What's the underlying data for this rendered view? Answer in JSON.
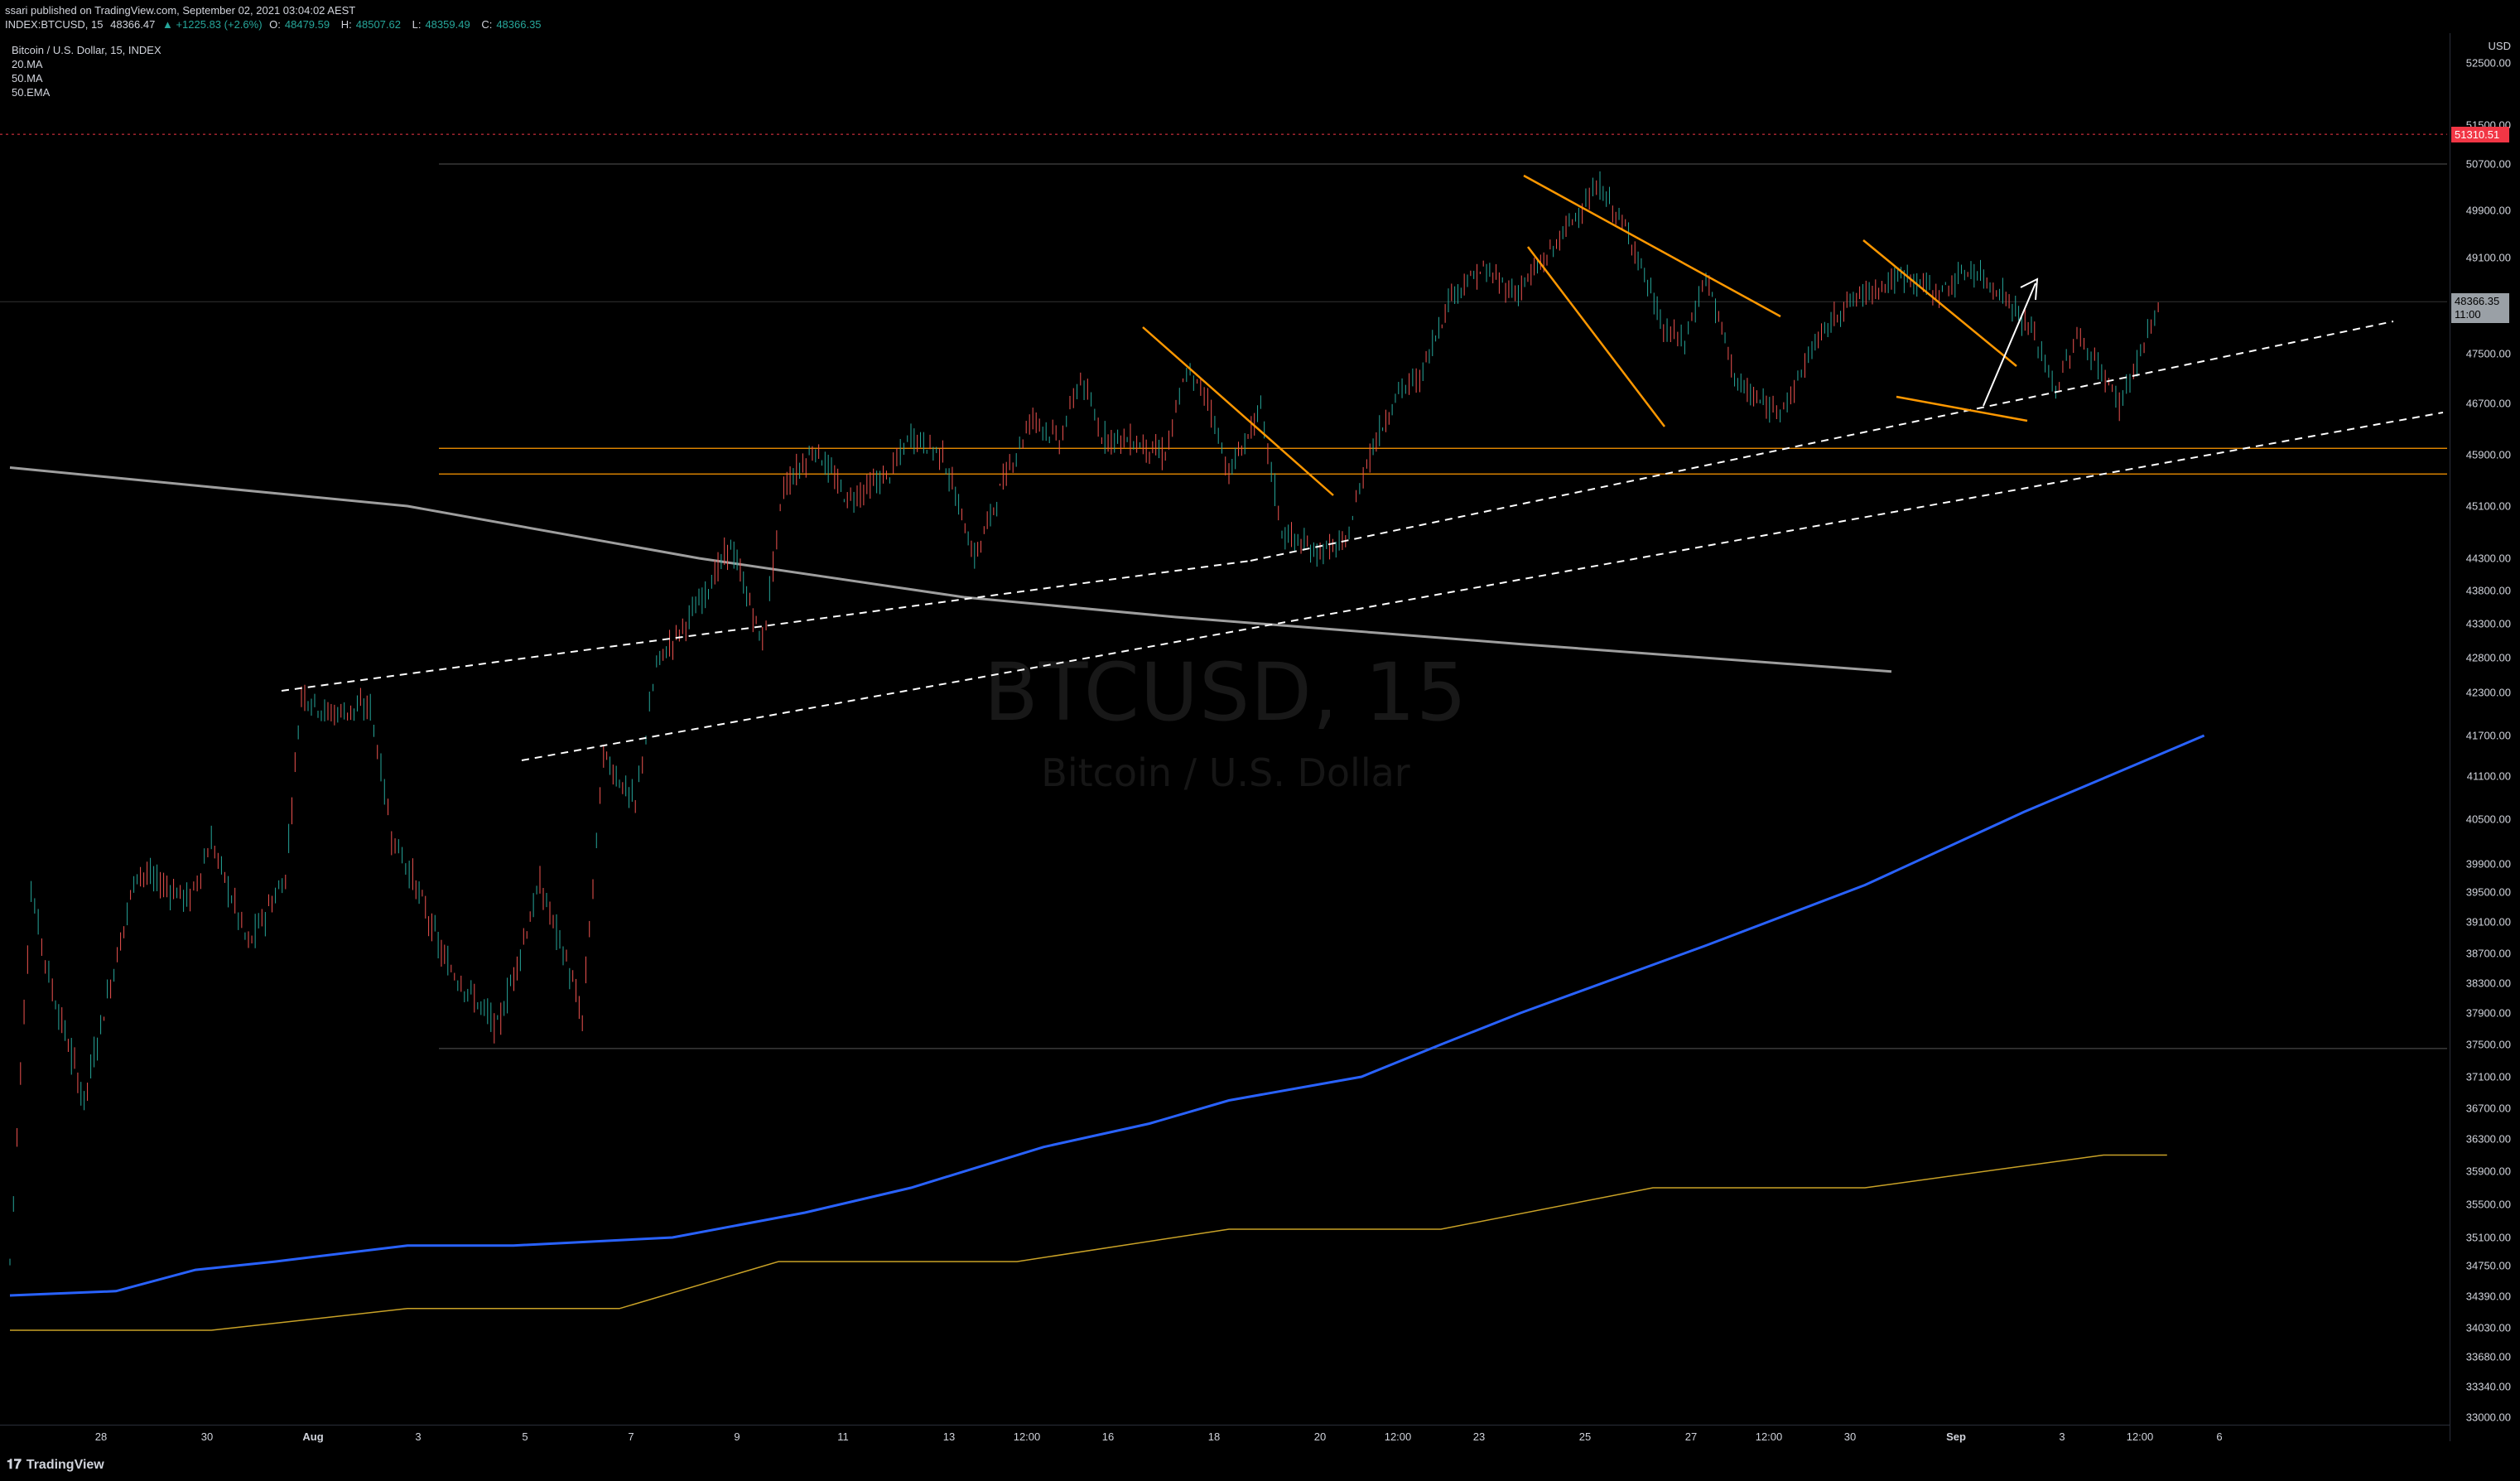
{
  "header": {
    "published": "ssari published on TradingView.com, September 02, 2021 03:04:02 AEST",
    "symbol_line": "INDEX:BTCUSD, 15",
    "last": "48366.47",
    "change": "▲ +1225.83 (+2.6%)",
    "o_label": "O:",
    "o": "48479.59",
    "h_label": "H:",
    "h": "48507.62",
    "l_label": "L:",
    "l": "48359.49",
    "c_label": "C:",
    "c": "48366.35"
  },
  "legend": {
    "title": "Bitcoin / U.S. Dollar, 15, INDEX",
    "ind1": "20.MA",
    "ind2": "50.MA",
    "ind3": "50.EMA"
  },
  "watermark": {
    "symbol": "BTCUSD, 15",
    "name": "Bitcoin / U.S. Dollar"
  },
  "axis": {
    "currency": "USD",
    "red_tag": "51310.51",
    "last_tag": "48366.35",
    "last_time": "11:00"
  },
  "footer": {
    "brand": "TradingView"
  },
  "colors": {
    "up": "#26a69a",
    "down": "#ef5350",
    "orange": "#ff9800",
    "blue": "#2962ff",
    "ema": "#9e9e9e",
    "ma50": "#c9a227"
  },
  "chart_data": {
    "type": "line",
    "y_ticks": [
      "52500.00",
      "51500.00",
      "50700.00",
      "49900.00",
      "49100.00",
      "47500.00",
      "46700.00",
      "45900.00",
      "45100.00",
      "44300.00",
      "43800.00",
      "43300.00",
      "42800.00",
      "42300.00",
      "41700.00",
      "41100.00",
      "40500.00",
      "39900.00",
      "39500.00",
      "39100.00",
      "38700.00",
      "38300.00",
      "37900.00",
      "37500.00",
      "37100.00",
      "36700.00",
      "36300.00",
      "35900.00",
      "35500.00",
      "35100.00",
      "34750.00",
      "34390.00",
      "34030.00",
      "33680.00",
      "33340.00",
      "33000.00"
    ],
    "x_ticks": [
      "28",
      "30",
      "Aug",
      "3",
      "5",
      "7",
      "9",
      "11",
      "13",
      "12:00",
      "16",
      "18",
      "20",
      "12:00",
      "23",
      "25",
      "27",
      "12:00",
      "30",
      "Sep",
      "3",
      "12:00",
      "6"
    ],
    "price_path": [
      [
        0,
        34800
      ],
      [
        0.4,
        39500
      ],
      [
        0.8,
        38200
      ],
      [
        1.4,
        36800
      ],
      [
        2.4,
        39800
      ],
      [
        3.4,
        39400
      ],
      [
        3.8,
        40200
      ],
      [
        4.5,
        38800
      ],
      [
        5.2,
        39700
      ],
      [
        5.5,
        42300
      ],
      [
        6.0,
        42000
      ],
      [
        6.8,
        42100
      ],
      [
        7.2,
        40300
      ],
      [
        7.6,
        39700
      ],
      [
        8.2,
        38600
      ],
      [
        9.2,
        37700
      ],
      [
        10.0,
        39600
      ],
      [
        10.5,
        38600
      ],
      [
        10.8,
        37800
      ],
      [
        11.2,
        41400
      ],
      [
        11.8,
        40700
      ],
      [
        12.2,
        42700
      ],
      [
        13.0,
        43600
      ],
      [
        13.6,
        44500
      ],
      [
        14.2,
        43000
      ],
      [
        14.6,
        45400
      ],
      [
        15.2,
        46000
      ],
      [
        15.8,
        45200
      ],
      [
        16.6,
        45600
      ],
      [
        17.0,
        46200
      ],
      [
        17.6,
        45900
      ],
      [
        18.2,
        44300
      ],
      [
        18.8,
        45600
      ],
      [
        19.3,
        46500
      ],
      [
        19.8,
        46100
      ],
      [
        20.2,
        47100
      ],
      [
        20.6,
        46200
      ],
      [
        21.2,
        46100
      ],
      [
        21.8,
        45900
      ],
      [
        22.2,
        47200
      ],
      [
        22.6,
        46800
      ],
      [
        23.0,
        45600
      ],
      [
        23.6,
        46600
      ],
      [
        24.0,
        44700
      ],
      [
        24.6,
        44400
      ],
      [
        25.2,
        44500
      ],
      [
        25.6,
        45800
      ],
      [
        26.2,
        46900
      ],
      [
        26.6,
        47100
      ],
      [
        27.2,
        48500
      ],
      [
        27.8,
        48900
      ],
      [
        28.4,
        48500
      ],
      [
        29.0,
        49100
      ],
      [
        29.6,
        49900
      ],
      [
        30.0,
        50300
      ],
      [
        30.6,
        49400
      ],
      [
        31.2,
        47900
      ],
      [
        31.6,
        47700
      ],
      [
        32.0,
        48800
      ],
      [
        32.6,
        47000
      ],
      [
        33.2,
        46600
      ],
      [
        33.6,
        46800
      ],
      [
        34.0,
        47600
      ],
      [
        34.6,
        48300
      ],
      [
        35.2,
        48600
      ],
      [
        35.8,
        48800
      ],
      [
        36.4,
        48500
      ],
      [
        37.0,
        48900
      ],
      [
        37.6,
        48500
      ],
      [
        38.2,
        47800
      ],
      [
        38.6,
        46900
      ],
      [
        39.0,
        47800
      ],
      [
        39.4,
        47300
      ],
      [
        39.8,
        46700
      ],
      [
        40.2,
        47500
      ],
      [
        40.6,
        48400
      ]
    ],
    "ema50_path": [
      [
        0,
        45700
      ],
      [
        7.5,
        45100
      ],
      [
        13.0,
        44300
      ],
      [
        18.0,
        43700
      ],
      [
        22.0,
        43400
      ],
      [
        28.5,
        43000
      ],
      [
        35.5,
        42600
      ]
    ],
    "ma20_path": [
      [
        0,
        34400
      ],
      [
        2.0,
        34450
      ],
      [
        3.5,
        34700
      ],
      [
        5.0,
        34800
      ],
      [
        7.5,
        35000
      ],
      [
        9.5,
        35000
      ],
      [
        12.5,
        35100
      ],
      [
        15.0,
        35400
      ],
      [
        17.0,
        35700
      ],
      [
        19.5,
        36200
      ],
      [
        21.5,
        36500
      ],
      [
        23.0,
        36800
      ],
      [
        25.5,
        37100
      ],
      [
        27.0,
        37500
      ],
      [
        28.5,
        37900
      ],
      [
        32.0,
        38800
      ],
      [
        35.0,
        39600
      ],
      [
        38.0,
        40600
      ],
      [
        40.5,
        41400
      ],
      [
        41.4,
        41700
      ]
    ],
    "ma50_path": [
      [
        0,
        34000
      ],
      [
        3.8,
        34000
      ],
      [
        7.5,
        34250
      ],
      [
        11.5,
        34250
      ],
      [
        14.5,
        34800
      ],
      [
        19.0,
        34800
      ],
      [
        23.0,
        35200
      ],
      [
        27.0,
        35200
      ],
      [
        31.0,
        35700
      ],
      [
        35.0,
        35700
      ],
      [
        39.5,
        36100
      ],
      [
        40.7,
        36100
      ]
    ],
    "horizontal_levels": [
      50700,
      48366.35,
      46000,
      45600,
      37450
    ],
    "red_dashed_level": 51310.51
  }
}
